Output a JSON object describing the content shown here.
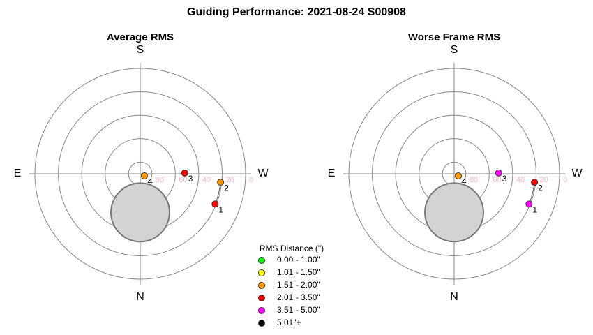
{
  "title": "Guiding Performance: 2021-08-24 S00908",
  "legend": {
    "title": "RMS Distance (\")",
    "entries": [
      {
        "label": "0.00 - 1.00\"",
        "color": "#00ff00"
      },
      {
        "label": "1.01 - 1.50\"",
        "color": "#ffff00"
      },
      {
        "label": "1.51 - 2.00\"",
        "color": "#ff9900"
      },
      {
        "label": "2.01 - 3.50\"",
        "color": "#ff0000"
      },
      {
        "label": "3.51 - 5.00\"",
        "color": "#ff00ff"
      },
      {
        "label": "5.01\"+",
        "color": "#000000"
      }
    ]
  },
  "chart_data": [
    {
      "type": "polar",
      "title": "Average RMS",
      "directions": {
        "S": "S",
        "E": "E",
        "W": "W",
        "N": "N"
      },
      "rlim": [
        90,
        0
      ],
      "rticks": [
        80,
        60,
        40,
        20,
        0
      ],
      "points": {
        "labels": [
          "1",
          "2",
          "3",
          "4"
        ],
        "az": [
          292,
          276,
          269,
          297
        ],
        "alt": [
          21,
          21,
          52,
          86
        ],
        "colors": [
          "#ff0000",
          "#ff9900",
          "#ff0000",
          "#ff9900"
        ]
      },
      "moon": {
        "az": 0,
        "alt": 57,
        "radius": 25
      }
    },
    {
      "type": "polar",
      "title": "Worse Frame RMS",
      "directions": {
        "S": "S",
        "E": "E",
        "W": "W",
        "N": "N"
      },
      "rlim": [
        90,
        0
      ],
      "rticks": [
        80,
        60,
        40,
        20,
        0
      ],
      "points": {
        "labels": [
          "1",
          "2",
          "3",
          "4"
        ],
        "az": [
          292,
          276,
          269,
          297
        ],
        "alt": [
          21,
          21,
          52,
          86
        ],
        "colors": [
          "#ff00ff",
          "#ff0000",
          "#ff00ff",
          "#ff9900"
        ]
      },
      "moon": {
        "az": 0,
        "alt": 57,
        "radius": 25
      }
    }
  ]
}
